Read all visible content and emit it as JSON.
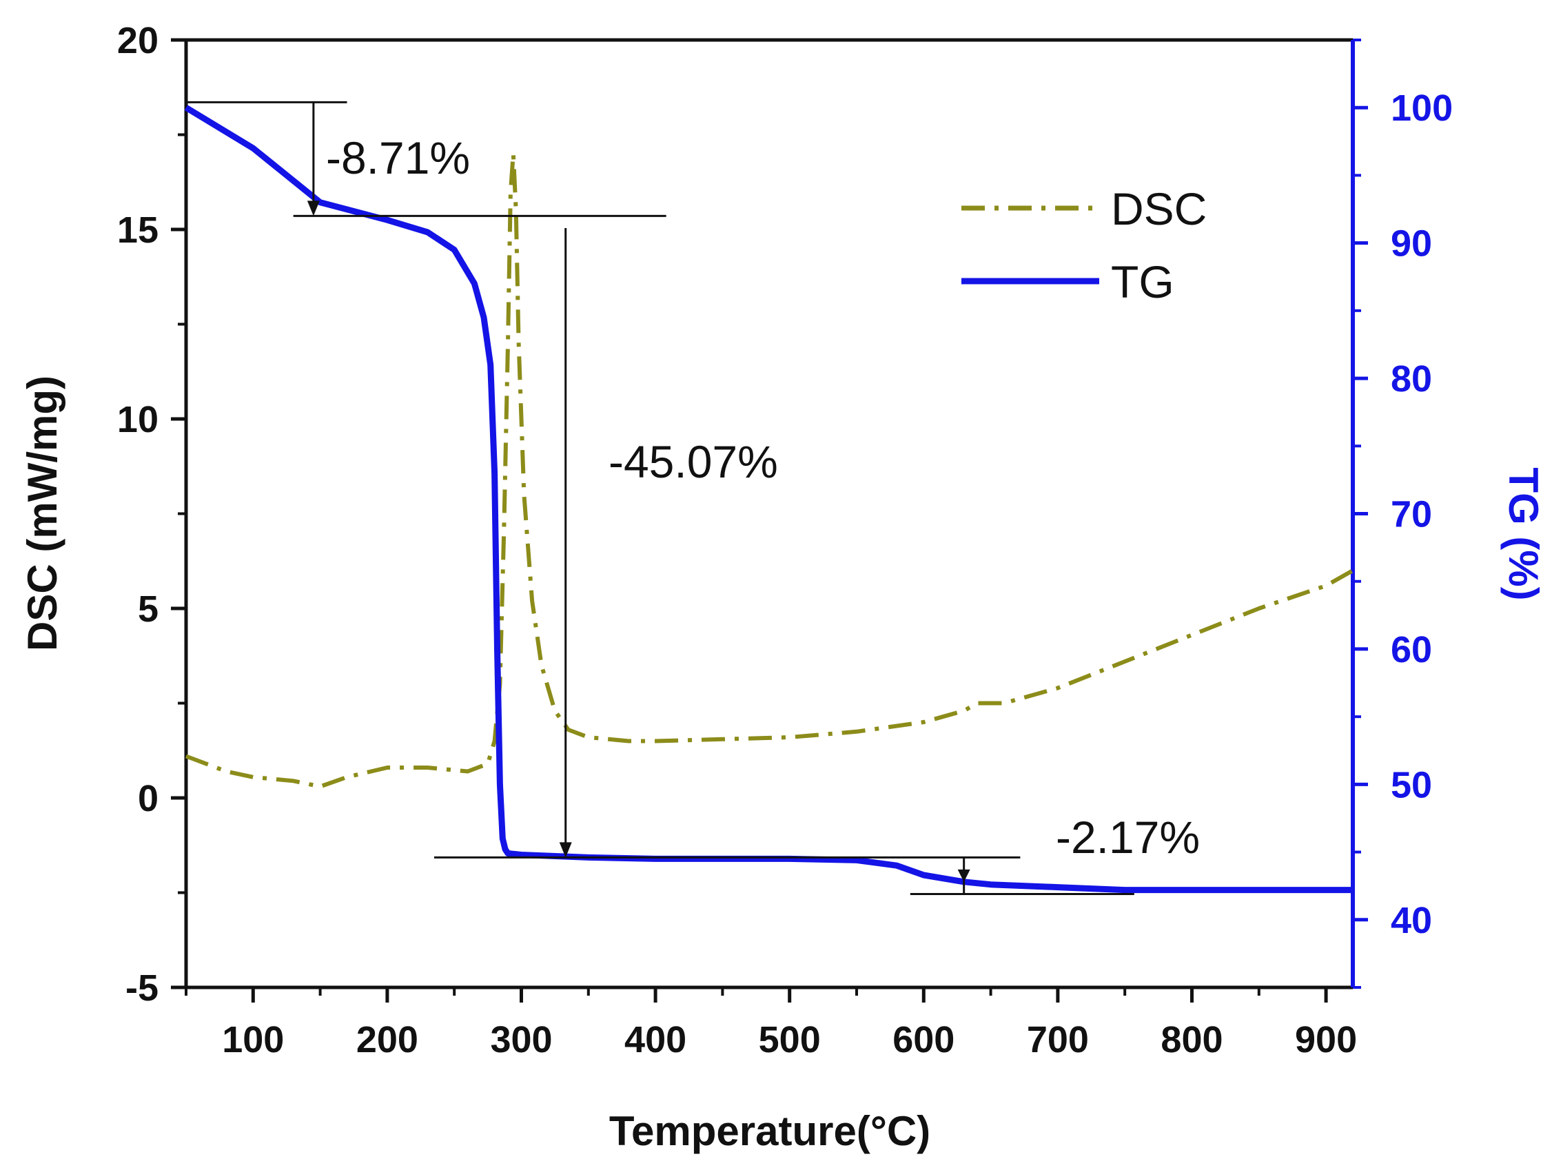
{
  "chart_data": {
    "type": "line",
    "xlabel": "Temperature(°C)",
    "ylabel_left": "DSC (mW/mg)",
    "ylabel_right": "TG (%)",
    "xlim": [
      50,
      920
    ],
    "ylim_left": [
      -5,
      20
    ],
    "ylim_right": [
      35,
      105
    ],
    "xticks": [
      100,
      200,
      300,
      400,
      500,
      600,
      700,
      800,
      900
    ],
    "yticks_left": [
      -5,
      0,
      5,
      10,
      15,
      20
    ],
    "yticks_right": [
      40,
      50,
      60,
      70,
      80,
      90,
      100
    ],
    "grid": false,
    "legend_position": "top-right",
    "colors": {
      "dsc": "#8c8c1a",
      "tg": "#1414e6",
      "right_axis": "#1414e6",
      "annotation": "#111111"
    },
    "series": [
      {
        "name": "DSC",
        "axis": "left",
        "style": "dash-dot",
        "x": [
          50,
          80,
          100,
          130,
          150,
          170,
          200,
          230,
          260,
          275,
          280,
          284,
          287,
          290,
          292,
          294,
          296,
          298,
          302,
          308,
          315,
          325,
          335,
          350,
          380,
          400,
          450,
          500,
          550,
          600,
          630,
          640,
          660,
          700,
          750,
          800,
          850,
          900,
          920
        ],
        "values": [
          1.1,
          0.7,
          0.55,
          0.45,
          0.3,
          0.55,
          0.8,
          0.8,
          0.7,
          0.9,
          1.5,
          3,
          7,
          12,
          16,
          17,
          15.5,
          12,
          8,
          5.2,
          3.5,
          2.3,
          1.8,
          1.6,
          1.5,
          1.5,
          1.55,
          1.6,
          1.75,
          2.0,
          2.3,
          2.5,
          2.5,
          2.9,
          3.6,
          4.3,
          5.0,
          5.6,
          6.0
        ]
      },
      {
        "name": "TG",
        "axis": "right",
        "style": "solid",
        "x": [
          50,
          100,
          150,
          200,
          230,
          250,
          265,
          272,
          277,
          280,
          282,
          284,
          286,
          288,
          290,
          300,
          350,
          400,
          500,
          550,
          580,
          600,
          630,
          650,
          700,
          750,
          800,
          900,
          920
        ],
        "values": [
          100,
          97,
          93,
          91.7,
          90.8,
          89.5,
          87,
          84.5,
          81,
          73,
          60,
          50,
          46,
          45.2,
          44.9,
          44.8,
          44.6,
          44.5,
          44.5,
          44.4,
          44.0,
          43.3,
          42.8,
          42.6,
          42.4,
          42.2,
          42.2,
          42.2,
          42.2
        ]
      }
    ],
    "annotations": [
      {
        "text": "-8.71%"
      },
      {
        "text": "-45.07%"
      },
      {
        "text": "-2.17%"
      }
    ]
  }
}
